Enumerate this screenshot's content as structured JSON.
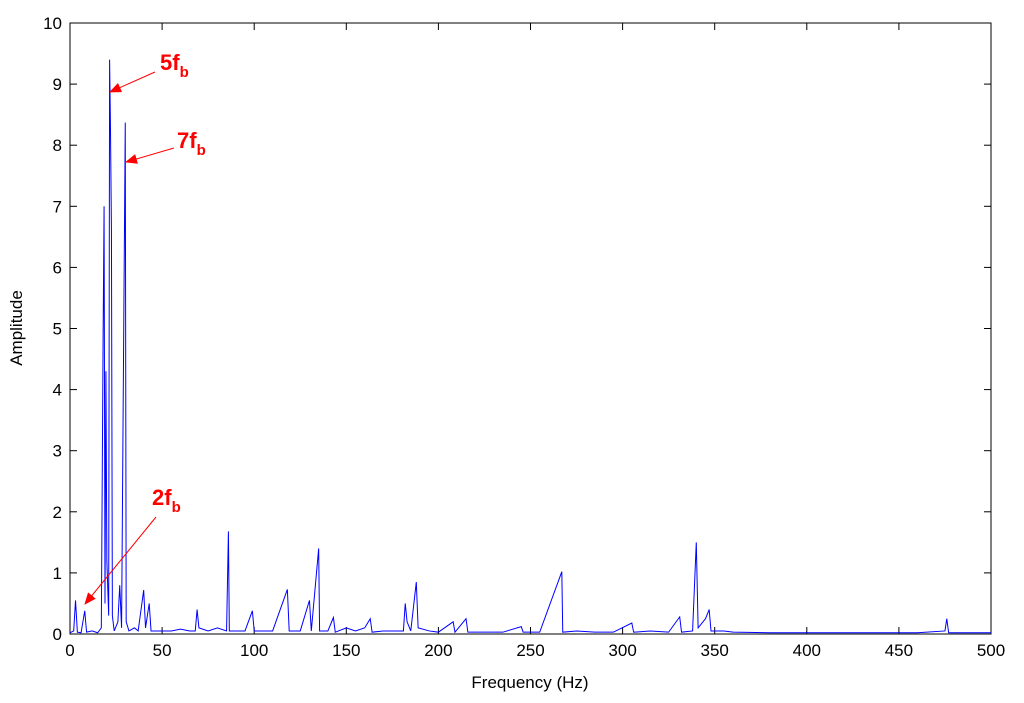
{
  "chart_data": {
    "type": "line",
    "xlabel": "Frequency (Hz)",
    "ylabel": "Amplitude",
    "x": [
      0,
      2,
      3,
      4,
      6,
      8,
      9,
      12,
      15,
      17,
      18,
      18.5,
      19,
      19.5,
      20,
      21,
      21.5,
      22,
      22.5,
      23,
      24,
      26,
      27,
      28,
      29,
      30,
      30.5,
      32,
      35,
      37,
      40,
      41,
      43,
      44,
      50,
      55,
      60,
      65,
      68,
      69,
      70,
      75,
      80,
      85,
      86,
      86.5,
      90,
      95,
      99,
      100,
      110,
      118,
      119,
      125,
      130,
      131,
      135,
      135.5,
      140,
      143,
      144,
      150,
      155,
      160,
      163,
      164,
      170,
      175,
      181,
      182,
      183,
      185,
      188,
      189,
      195,
      200,
      208,
      209,
      215,
      216,
      225,
      235,
      245,
      246,
      255,
      267,
      267.5,
      275,
      285,
      295,
      305,
      306,
      315,
      325,
      331,
      332,
      338,
      340,
      341,
      345,
      347,
      348,
      355,
      360,
      380,
      400,
      420,
      440,
      460,
      475,
      476,
      477,
      490,
      500
    ],
    "series": [
      {
        "name": "spectrum",
        "color": "#0000ff",
        "values": [
          0.02,
          0.05,
          0.55,
          0.03,
          0.02,
          0.38,
          0.03,
          0.05,
          0.02,
          0.1,
          5.0,
          7.0,
          0.5,
          4.3,
          1.2,
          0.3,
          9.4,
          8.2,
          6.6,
          0.3,
          0.05,
          0.2,
          0.8,
          0.1,
          4.3,
          8.37,
          0.2,
          0.05,
          0.1,
          0.05,
          0.72,
          0.1,
          0.5,
          0.05,
          0.05,
          0.05,
          0.08,
          0.05,
          0.05,
          0.4,
          0.1,
          0.05,
          0.1,
          0.05,
          1.68,
          0.05,
          0.05,
          0.05,
          0.38,
          0.05,
          0.05,
          0.73,
          0.05,
          0.05,
          0.55,
          0.05,
          1.4,
          0.05,
          0.05,
          0.27,
          0.03,
          0.1,
          0.05,
          0.1,
          0.25,
          0.03,
          0.05,
          0.05,
          0.05,
          0.5,
          0.2,
          0.05,
          0.85,
          0.1,
          0.05,
          0.03,
          0.2,
          0.03,
          0.25,
          0.03,
          0.03,
          0.03,
          0.12,
          0.03,
          0.03,
          1.02,
          0.03,
          0.05,
          0.03,
          0.03,
          0.18,
          0.03,
          0.05,
          0.03,
          0.28,
          0.03,
          0.05,
          1.5,
          0.1,
          0.25,
          0.4,
          0.05,
          0.05,
          0.03,
          0.02,
          0.02,
          0.02,
          0.02,
          0.02,
          0.05,
          0.25,
          0.02,
          0.02,
          0.02
        ]
      }
    ],
    "xlim": [
      0,
      500
    ],
    "xticks": [
      0,
      50,
      100,
      150,
      200,
      250,
      300,
      350,
      400,
      450,
      500
    ],
    "ylim": [
      0,
      10
    ],
    "yticks": [
      0,
      1,
      2,
      3,
      4,
      5,
      6,
      7,
      8,
      9,
      10
    ],
    "annotations": [
      {
        "text": "5f",
        "subscript": "b",
        "color": "#ff0000"
      },
      {
        "text": "7f",
        "subscript": "b",
        "color": "#ff0000"
      },
      {
        "text": "2f",
        "subscript": "b",
        "color": "#ff0000"
      }
    ]
  }
}
